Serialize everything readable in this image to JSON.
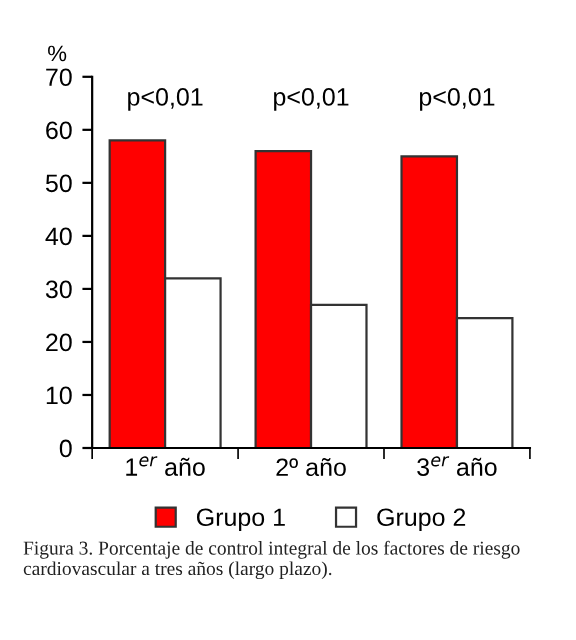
{
  "chart_data": {
    "type": "bar",
    "ylabel": "%",
    "categories": [
      "1$^{er}$ año",
      "2º año",
      "3$^{er}$ año"
    ],
    "series": [
      {
        "name": "Grupo 1",
        "color": "#ff0000",
        "values": [
          58,
          56,
          55
        ]
      },
      {
        "name": "Grupo 2",
        "color": "#ffffff",
        "values": [
          32,
          27,
          24.5
        ]
      }
    ],
    "ylim": [
      0,
      70
    ],
    "yticks": [
      0,
      10,
      20,
      30,
      40,
      50,
      60,
      70
    ],
    "grid": false,
    "legend": "bottom",
    "annotations": [
      "p<0,01",
      "p<0,01",
      "p<0,01",
      "Figura 3. Porcentaje de control integral de los factores de riesgo cardiovascular a tres años (largo plazo)."
    ]
  }
}
